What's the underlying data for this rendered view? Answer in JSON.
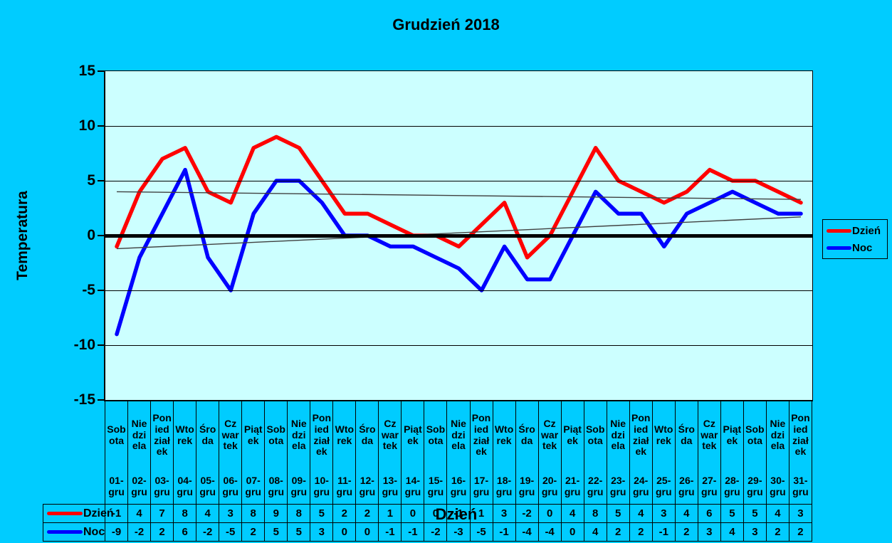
{
  "chart": {
    "title": "Grudzień 2018",
    "y_axis": {
      "title": "Temperatura",
      "tick_labels": [
        15,
        10,
        5,
        0,
        -5,
        -10,
        -15
      ]
    },
    "x_axis": {
      "title": "Dzień"
    },
    "legend": {
      "entries": [
        {
          "label": "Dzień",
          "color": "#ff0000"
        },
        {
          "label": "Noc",
          "color": "#0000ff"
        }
      ]
    }
  },
  "chart_data": {
    "type": "line",
    "title": "Grudzień 2018",
    "xlabel": "Dzień",
    "ylabel": "Temperatura",
    "ylim": [
      -15,
      15
    ],
    "y_ticks": [
      15,
      10,
      5,
      0,
      -5,
      -10,
      -15
    ],
    "grid": true,
    "legend_position": "right",
    "categories_day_names": [
      "Sobota",
      "Niedziela",
      "Poniedziałek",
      "Wtorek",
      "Środa",
      "Czwartek",
      "Piątek",
      "Sobota",
      "Niedziela",
      "Poniedziałek",
      "Wtorek",
      "Środa",
      "Czwartek",
      "Piątek",
      "Sobota",
      "Niedziela",
      "Poniedziałek",
      "Wtorek",
      "Środa",
      "Czwartek",
      "Piątek",
      "Sobota",
      "Niedziela",
      "Poniedziałek",
      "Wtorek",
      "Środa",
      "Czwartek",
      "Piątek",
      "Sobota",
      "Niedziela",
      "Poniedziałek"
    ],
    "categories_dates": [
      "01-gru",
      "02-gru",
      "03-gru",
      "04-gru",
      "05-gru",
      "06-gru",
      "07-gru",
      "08-gru",
      "09-gru",
      "10-gru",
      "11-gru",
      "12-gru",
      "13-gru",
      "14-gru",
      "15-gru",
      "16-gru",
      "17-gru",
      "18-gru",
      "19-gru",
      "20-gru",
      "21-gru",
      "22-gru",
      "23-gru",
      "24-gru",
      "25-gru",
      "26-gru",
      "27-gru",
      "28-gru",
      "29-gru",
      "30-gru",
      "31-gru"
    ],
    "series": [
      {
        "name": "Dzień",
        "color": "#ff0000",
        "values": [
          -1,
          4,
          7,
          8,
          4,
          3,
          8,
          9,
          8,
          5,
          2,
          2,
          1,
          0,
          0,
          -1,
          1,
          3,
          -2,
          0,
          4,
          8,
          5,
          4,
          3,
          4,
          6,
          5,
          5,
          4,
          3
        ]
      },
      {
        "name": "Noc",
        "color": "#0000ff",
        "values": [
          -9,
          -2,
          2,
          6,
          -2,
          -5,
          2,
          5,
          5,
          3,
          0,
          0,
          -1,
          -1,
          -2,
          -3,
          -5,
          -1,
          -4,
          -4,
          0,
          4,
          2,
          2,
          -1,
          2,
          3,
          4,
          3,
          2,
          2
        ]
      }
    ],
    "trendlines": [
      {
        "series": "Dzień",
        "color": "#404040",
        "start_value": 4.0,
        "end_value": 3.3
      },
      {
        "series": "Noc",
        "color": "#404040",
        "start_value": -1.2,
        "end_value": 1.7
      }
    ]
  },
  "colors": {
    "page_bg": "#00ccff",
    "plot_bg": "#ccffff",
    "grid": "#000000",
    "text": "#000000"
  }
}
